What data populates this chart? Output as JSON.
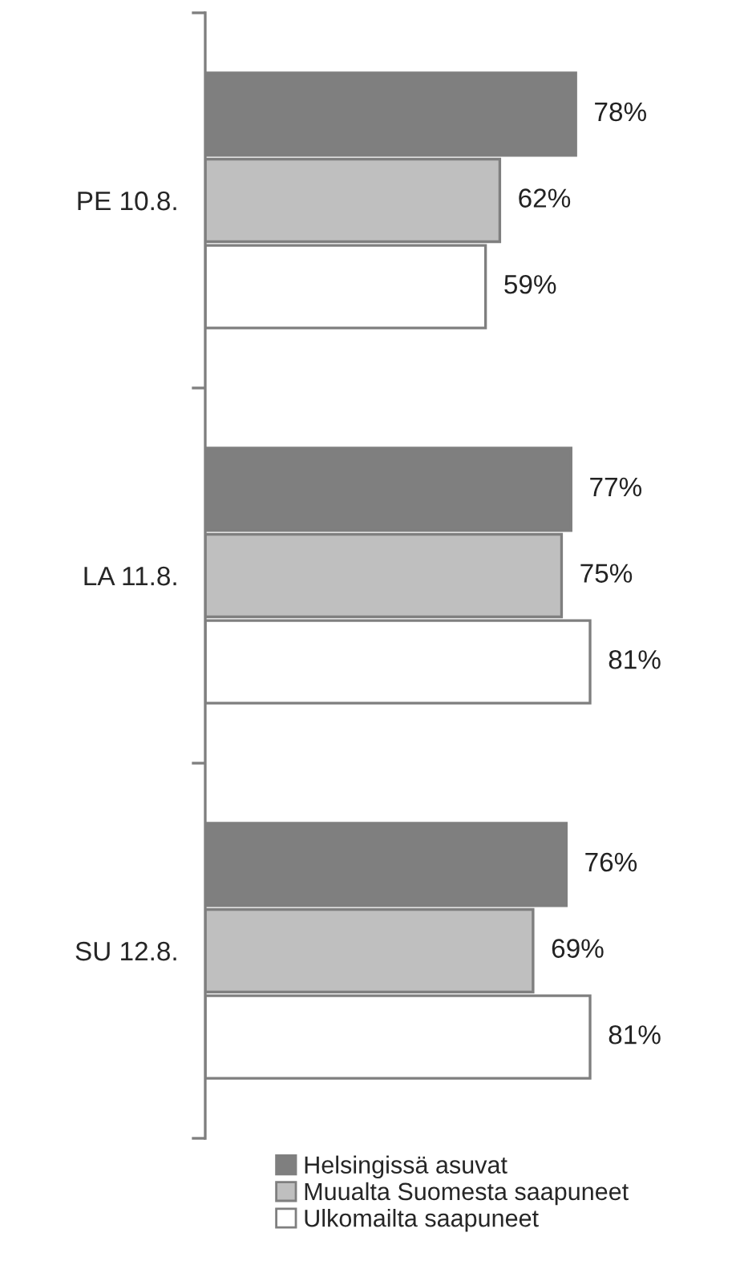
{
  "chart_data": {
    "type": "bar",
    "orientation": "horizontal",
    "categories": [
      "PE 10.8.",
      "LA 11.8.",
      "SU 12.8."
    ],
    "series": [
      {
        "name": "Helsingissä asuvat",
        "color": "#7f7f7f",
        "values": [
          78,
          77,
          76
        ],
        "value_labels": [
          "78%",
          "77%",
          "76%"
        ]
      },
      {
        "name": "Muualta Suomesta saapuneet",
        "color": "#bfbfbf",
        "values": [
          62,
          75,
          69
        ],
        "value_labels": [
          "62%",
          "75%",
          "69%"
        ]
      },
      {
        "name": "Ulkomailta saapuneet",
        "color": "#ffffff",
        "values": [
          59,
          81,
          81
        ],
        "value_labels": [
          "59%",
          "81%",
          "81%"
        ]
      }
    ],
    "legend": "bottom",
    "grid": false
  }
}
